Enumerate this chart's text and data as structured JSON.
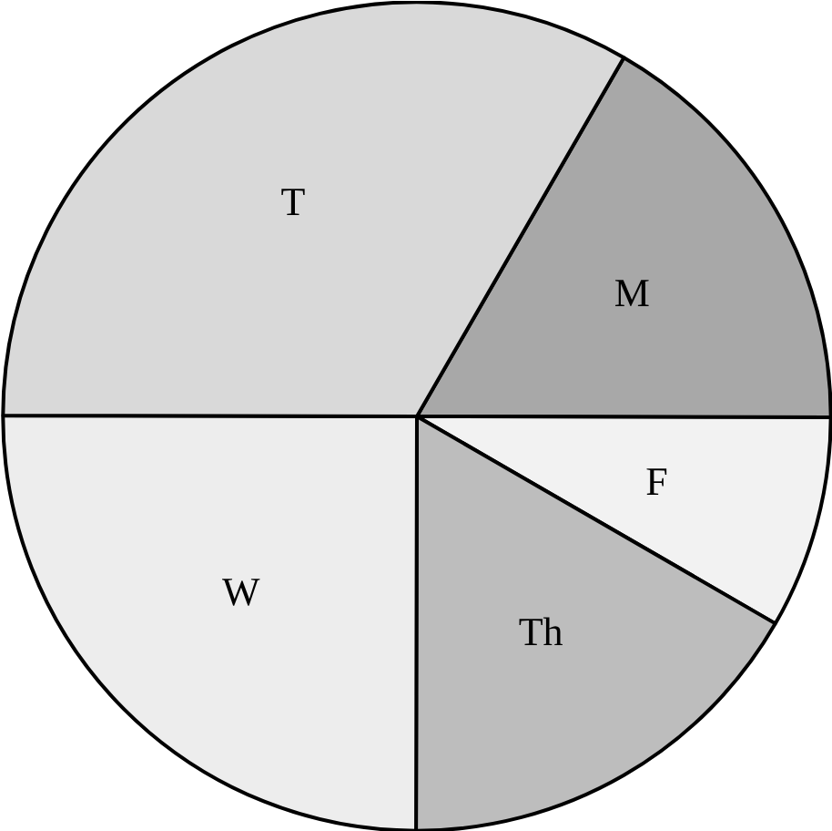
{
  "chart_data": {
    "type": "pie",
    "categories": [
      "M",
      "F",
      "Th",
      "W",
      "T"
    ],
    "values": [
      16.7,
      8.3,
      16.7,
      25,
      33.3
    ],
    "colors": [
      "#a8a8a8",
      "#f2f2f2",
      "#bdbdbd",
      "#ededed",
      "#d9d9d9"
    ]
  }
}
